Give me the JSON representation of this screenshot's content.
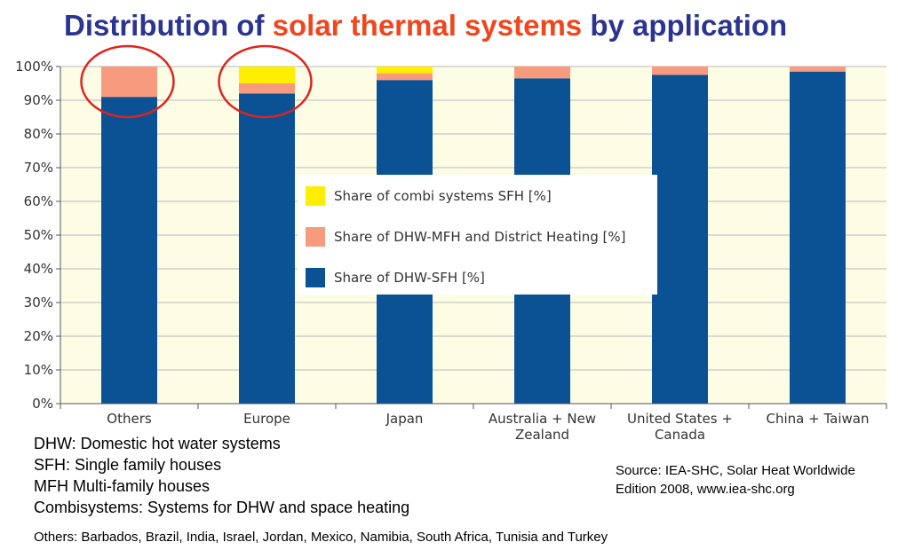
{
  "title": {
    "part1": "Distribution of ",
    "part2": "solar thermal systems",
    "part3": " by application"
  },
  "colors": {
    "combi": "#ffee00",
    "mfh": "#f79a7e",
    "sfh": "#0b5294",
    "plot_bg": "#fdfde6",
    "title": "#2b3590",
    "title_accent": "#f0461e",
    "highlight_circle": "#e0231e"
  },
  "chart_data": {
    "type": "bar",
    "stacked": true,
    "categories": [
      "Others",
      "Europe",
      "Japan",
      "Australia + New Zealand",
      "United States + Canada",
      "China + Taiwan"
    ],
    "category_lines": [
      [
        "Others"
      ],
      [
        "Europe"
      ],
      [
        "Japan"
      ],
      [
        "Australia + New",
        "Zealand"
      ],
      [
        "United States +",
        "Canada"
      ],
      [
        "China + Taiwan"
      ]
    ],
    "series": [
      {
        "name": "Share of DHW-SFH [%]",
        "color": "#0b5294",
        "values": [
          91,
          92,
          96,
          96.5,
          97.5,
          98.5
        ]
      },
      {
        "name": "Share of DHW-MFH and District Heating [%]",
        "color": "#f79a7e",
        "values": [
          9,
          3,
          2,
          3.5,
          2.5,
          1.5
        ]
      },
      {
        "name": "Share of combi systems SFH [%]",
        "color": "#ffee00",
        "values": [
          0,
          5,
          2,
          0,
          0,
          0
        ]
      }
    ],
    "legend_order": [
      "Share of combi systems SFH [%]",
      "Share of DHW-MFH and District Heating [%]",
      "Share of DHW-SFH [%]"
    ],
    "yticks": [
      "0%",
      "10%",
      "20%",
      "30%",
      "40%",
      "50%",
      "60%",
      "70%",
      "80%",
      "90%",
      "100%"
    ],
    "ylim": [
      0,
      100
    ],
    "grid": true,
    "legend_position": "center",
    "highlighted_categories": [
      "Others",
      "Europe"
    ]
  },
  "notes": [
    "DHW: Domestic hot water systems",
    "SFH: Single family houses",
    "MFH Multi-family houses",
    "Combisystems: Systems for DHW and space heating"
  ],
  "source": {
    "line1": "Source: IEA-SHC, Solar Heat Worldwide",
    "line2": "Edition 2008, www.iea-shc.org"
  },
  "others_note": "Others: Barbados, Brazil, India, Israel, Jordan, Mexico, Namibia, South Africa, Tunisia and Turkey"
}
